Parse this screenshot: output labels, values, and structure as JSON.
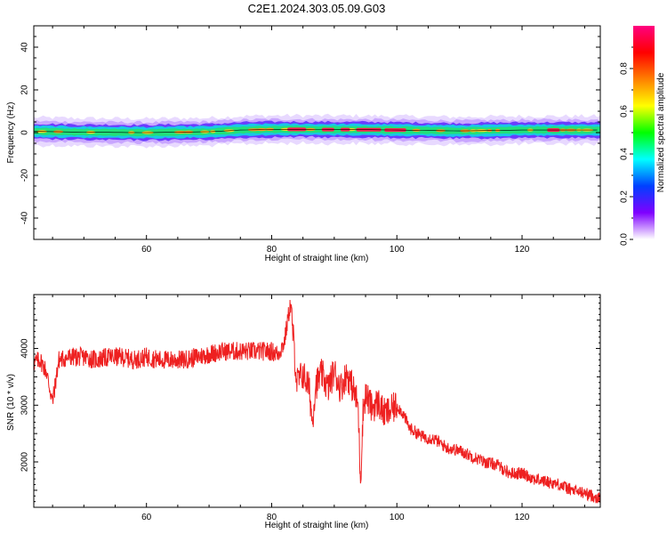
{
  "title": "C2E1.2024.303.05.09.G03",
  "chart_data": [
    {
      "type": "heatmap",
      "xlabel": "Height of straight line (km)",
      "ylabel": "Frequency (Hz)",
      "xlim": [
        42,
        132.5
      ],
      "ylim": [
        -50,
        50
      ],
      "xticks": [
        60,
        80,
        100,
        120
      ],
      "yticks": [
        40,
        20,
        0,
        -20,
        -40
      ],
      "grid": false,
      "colorbar": {
        "label": "Normalized spectral amplitude",
        "range": [
          0.0,
          1.0
        ],
        "ticks": [
          0.0,
          0.2,
          0.4,
          0.6,
          0.8
        ],
        "colors": [
          "#ffffff",
          "#7f00ff",
          "#0040ff",
          "#00ffff",
          "#00ff00",
          "#ffff00",
          "#ff8000",
          "#ff0000",
          "#ff0080"
        ]
      },
      "band": {
        "center_hz": [
          [
            42,
            0.6
          ],
          [
            50,
            0.2
          ],
          [
            60,
            0.0
          ],
          [
            70,
            0.4
          ],
          [
            75,
            1.2
          ],
          [
            80,
            1.5
          ],
          [
            85,
            1.5
          ],
          [
            90,
            1.4
          ],
          [
            95,
            1.4
          ],
          [
            100,
            1.2
          ],
          [
            105,
            1.0
          ],
          [
            110,
            0.8
          ],
          [
            115,
            1.0
          ],
          [
            120,
            1.2
          ],
          [
            125,
            1.2
          ],
          [
            132.5,
            1.2
          ]
        ],
        "halfwidth_hz": 4,
        "strong_segments": [
          [
            82.5,
            85.5
          ],
          [
            88,
            90
          ],
          [
            91,
            92.5
          ],
          [
            93.5,
            97.5
          ],
          [
            98,
            101.5
          ],
          [
            124,
            126
          ]
        ]
      }
    },
    {
      "type": "line",
      "xlabel": "Height of straight line (km)",
      "ylabel": "SNR (10 * v/v)",
      "xlim": [
        42,
        132.5
      ],
      "ylim": [
        1200,
        4950
      ],
      "xticks": [
        60,
        80,
        100,
        120
      ],
      "yticks": [
        2000,
        3000,
        4000
      ],
      "grid": false,
      "color": "#ee2020",
      "x": [
        42,
        43,
        44,
        45,
        46,
        48,
        50,
        52,
        54,
        56,
        58,
        60,
        62,
        64,
        66,
        68,
        70,
        72,
        74,
        76,
        78,
        80,
        81,
        82,
        83,
        83.6,
        84,
        85,
        86,
        86.5,
        87,
        88,
        89,
        90,
        91,
        92,
        93,
        93.8,
        94.2,
        94.6,
        95,
        96,
        97,
        98,
        99,
        100,
        101,
        102,
        104,
        106,
        108,
        110,
        112,
        114,
        116,
        118,
        120,
        122,
        124,
        126,
        128,
        130,
        132.5
      ],
      "y": [
        3750,
        3800,
        3600,
        3050,
        3800,
        3850,
        3850,
        3800,
        3850,
        3850,
        3800,
        3850,
        3800,
        3800,
        3800,
        3850,
        3900,
        3950,
        3950,
        3950,
        3950,
        3950,
        3900,
        4100,
        4800,
        4000,
        3400,
        3550,
        3300,
        2700,
        3350,
        3550,
        3300,
        3600,
        3300,
        3550,
        3300,
        3000,
        1650,
        2900,
        3200,
        2950,
        3050,
        2850,
        2900,
        3000,
        2850,
        2600,
        2450,
        2400,
        2250,
        2200,
        2100,
        2000,
        1950,
        1800,
        1800,
        1700,
        1650,
        1600,
        1500,
        1450,
        1350
      ]
    }
  ]
}
